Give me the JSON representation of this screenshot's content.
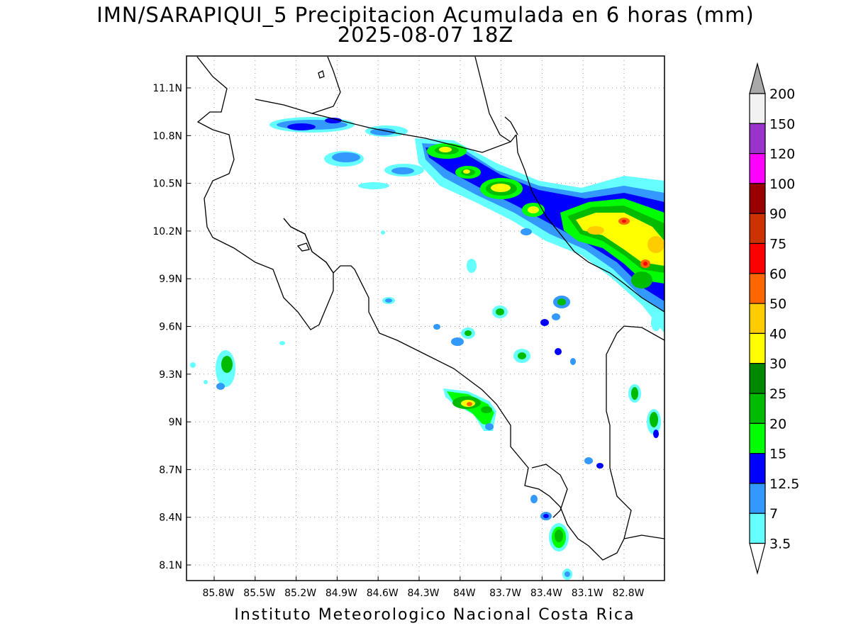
{
  "title": {
    "line1": "IMN/SARAPIQUI_5 Precipitacion Acumulada en 6 horas (mm)",
    "line2": "2025-08-07 18Z"
  },
  "footer": "Instituto Meteorologico Nacional Costa Rica",
  "map": {
    "lon_range": [
      -86.05,
      -82.55
    ],
    "lat_range": [
      8.0,
      11.3
    ],
    "lat_ticks": [
      "11.1N",
      "10.8N",
      "10.5N",
      "10.2N",
      "9.9N",
      "9.6N",
      "9.3N",
      "9N",
      "8.7N",
      "8.4N",
      "8.1N"
    ],
    "lon_ticks": [
      "85.8W",
      "85.5W",
      "85.2W",
      "84.9W",
      "84.6W",
      "84.3W",
      "84W",
      "83.7W",
      "83.4W",
      "83.1W",
      "82.8W"
    ],
    "grid": "dotted"
  },
  "legend": {
    "levels": [
      "200",
      "150",
      "120",
      "100",
      "90",
      "75",
      "60",
      "50",
      "40",
      "30",
      "25",
      "20",
      "15",
      "12.5",
      "7",
      "3.5"
    ],
    "colors": [
      "#a9a9a9",
      "#f2f2f2",
      "#9933cc",
      "#ff00ff",
      "#990000",
      "#cc3300",
      "#ff0000",
      "#ff6600",
      "#ffcc00",
      "#ffff00",
      "#008800",
      "#00bb00",
      "#00ff00",
      "#0000ff",
      "#3399ff",
      "#66ffff"
    ]
  }
}
